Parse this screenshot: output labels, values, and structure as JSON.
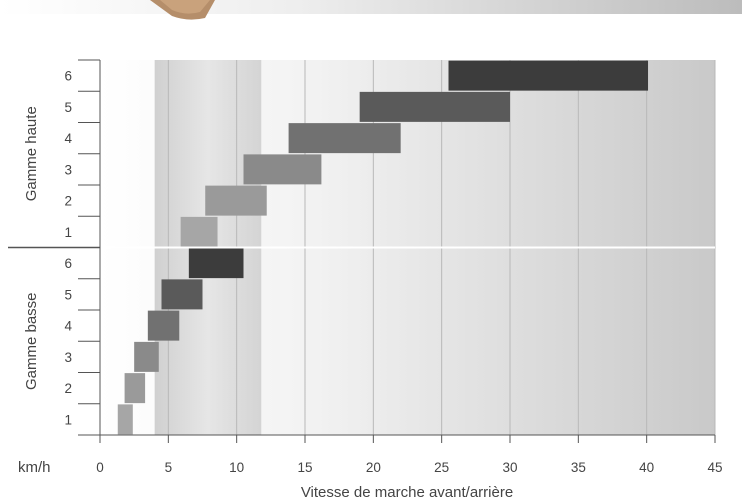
{
  "chart_data": {
    "type": "bar",
    "orientation": "horizontal-range",
    "xlabel": "Vitesse de marche avant/arrière",
    "x_unit": "km/h",
    "xlim": [
      0,
      45
    ],
    "x_ticks": [
      0,
      5,
      10,
      15,
      20,
      25,
      30,
      35,
      40,
      45
    ],
    "grid": "vertical",
    "highlight_band": [
      4,
      11.8
    ],
    "groups": [
      {
        "name": "Gamme haute",
        "gears": [
          {
            "gear": "1",
            "range": [
              5.9,
              8.6
            ]
          },
          {
            "gear": "2",
            "range": [
              7.7,
              12.2
            ]
          },
          {
            "gear": "3",
            "range": [
              10.5,
              16.2
            ]
          },
          {
            "gear": "4",
            "range": [
              13.8,
              22.0
            ]
          },
          {
            "gear": "5",
            "range": [
              19.0,
              30.0
            ]
          },
          {
            "gear": "6",
            "range": [
              25.5,
              40.1
            ]
          }
        ]
      },
      {
        "name": "Gamme basse",
        "gears": [
          {
            "gear": "1",
            "range": [
              1.3,
              2.4
            ]
          },
          {
            "gear": "2",
            "range": [
              1.8,
              3.3
            ]
          },
          {
            "gear": "3",
            "range": [
              2.5,
              4.3
            ]
          },
          {
            "gear": "4",
            "range": [
              3.5,
              5.8
            ]
          },
          {
            "gear": "5",
            "range": [
              4.5,
              7.5
            ]
          },
          {
            "gear": "6",
            "range": [
              6.5,
              10.5
            ]
          }
        ]
      }
    ],
    "gear_colors": {
      "1": "#a6a6a6",
      "2": "#9a9a9a",
      "3": "#8a8a8a",
      "4": "#717171",
      "5": "#5a5a5a",
      "6": "#3c3c3c"
    }
  }
}
